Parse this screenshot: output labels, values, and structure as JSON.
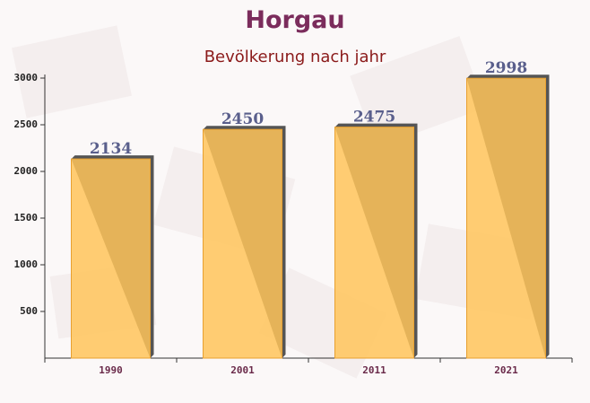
{
  "chart_data": {
    "type": "bar",
    "title": "Horgau",
    "subtitle": "Bevölkerung nach jahr",
    "categories": [
      "1990",
      "2001",
      "2011",
      "2021"
    ],
    "values": [
      2134,
      2450,
      2475,
      2998
    ],
    "color": "#ffc45a",
    "ylim": [
      0,
      3000
    ],
    "yticks": [
      500,
      1000,
      1500,
      2000,
      2500,
      3000
    ]
  }
}
